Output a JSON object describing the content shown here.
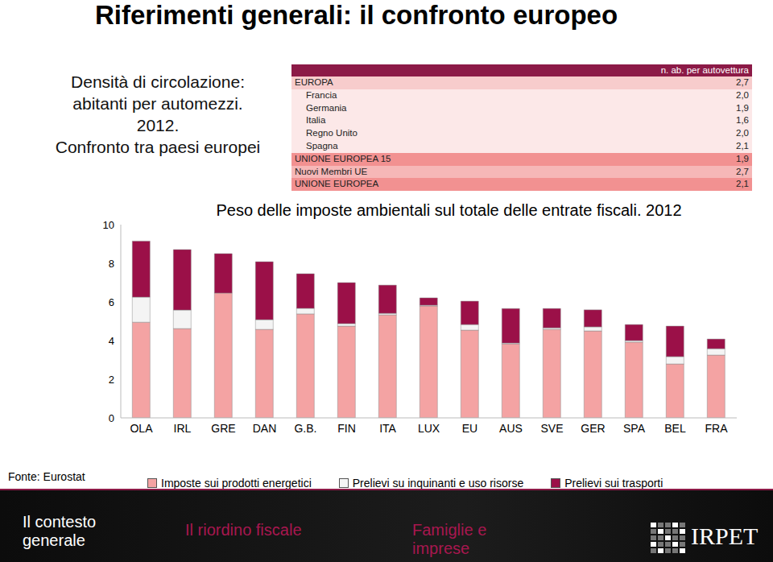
{
  "slide": {
    "title": "Riferimenti generali: il confronto europeo",
    "intro": [
      "Densità di circolazione:",
      "abitanti per automezzi.",
      "2012.",
      "Confronto tra paesi europei"
    ],
    "source": "Fonte: Eurostat",
    "footer": [
      "Il contesto generale",
      "Il riordino fiscale",
      "Famiglie e imprese"
    ],
    "logo": "IRPET"
  },
  "table": {
    "header": "n. ab. per autovettura",
    "rows": [
      [
        "EUROPA",
        "2,7"
      ],
      [
        "Francia",
        "2,0"
      ],
      [
        "Germania",
        "1,9"
      ],
      [
        "Italia",
        "1,6"
      ],
      [
        "Regno Unito",
        "2,0"
      ],
      [
        "Spagna",
        "2,1"
      ],
      [
        "UNIONE EUROPEA 15",
        "1,9"
      ],
      [
        "Nuovi Membri UE",
        "2,7"
      ],
      [
        "UNIONE EUROPEA",
        "2,1"
      ]
    ]
  },
  "chart_data": {
    "type": "bar",
    "stacked": true,
    "title": "Peso delle imposte ambientali sul totale delle entrate fiscali. 2012",
    "categories": [
      "OLA",
      "IRL",
      "GRE",
      "DAN",
      "G.B.",
      "FIN",
      "ITA",
      "LUX",
      "EU",
      "AUS",
      "SVE",
      "GER",
      "SPA",
      "BEL",
      "FRA"
    ],
    "series": [
      {
        "name": "Imposte sui prodotti energetici",
        "color": "#f4a3a3",
        "values": [
          4.95,
          4.62,
          6.46,
          4.58,
          5.38,
          4.75,
          5.33,
          5.79,
          4.54,
          3.83,
          4.58,
          4.5,
          3.92,
          2.79,
          3.25
        ]
      },
      {
        "name": "Prelievi su inquinanti e uso risorse",
        "color": "#f4f4f4",
        "values": [
          1.3,
          0.96,
          0.0,
          0.5,
          0.29,
          0.13,
          0.08,
          0.04,
          0.29,
          0.04,
          0.08,
          0.21,
          0.08,
          0.38,
          0.33
        ]
      },
      {
        "name": "Prelievi sui trasporti",
        "color": "#9b1048",
        "values": [
          2.9,
          3.13,
          2.04,
          3.0,
          1.79,
          2.12,
          1.46,
          0.38,
          1.21,
          1.79,
          1.0,
          0.88,
          0.83,
          1.58,
          0.5
        ]
      }
    ],
    "ylim": [
      0,
      10
    ],
    "yticks": [
      0,
      2,
      4,
      6,
      8,
      10
    ],
    "grid": false,
    "legend": "bottom"
  }
}
